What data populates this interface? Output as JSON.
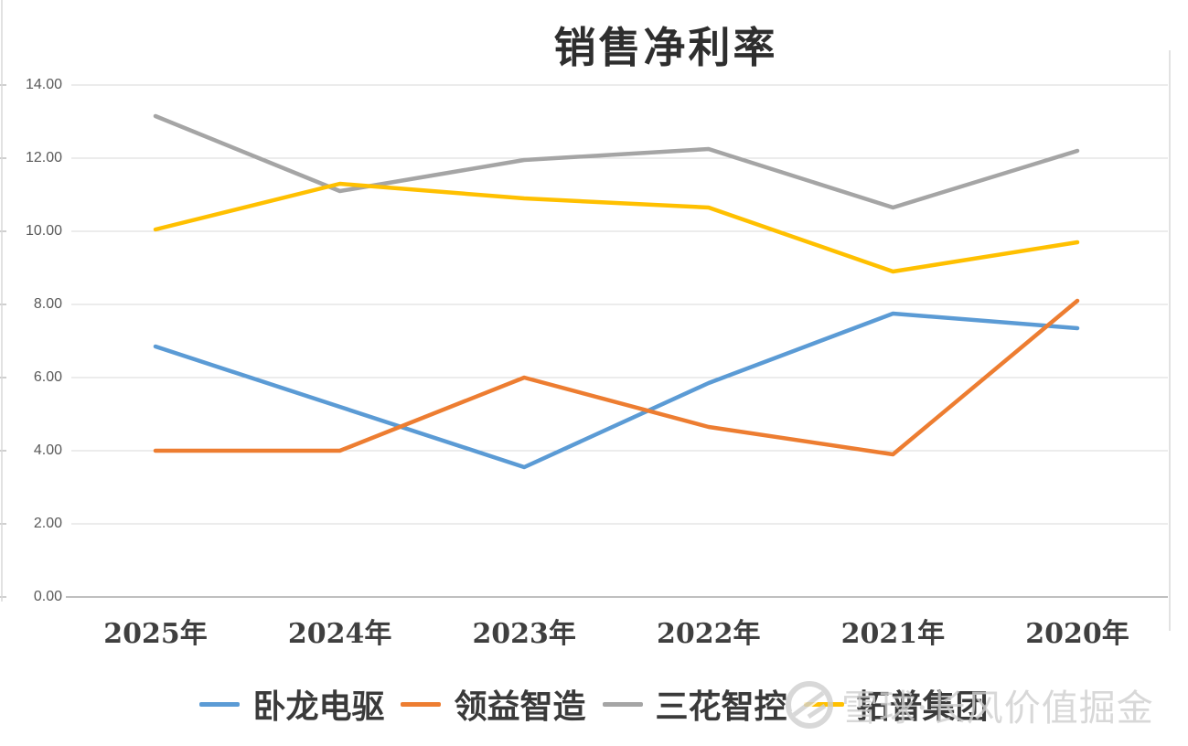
{
  "title": "销售净利率",
  "chart_data": {
    "type": "line",
    "title": "销售净利率",
    "categories": [
      "2025年",
      "2024年",
      "2023年",
      "2022年",
      "2021年",
      "2020年"
    ],
    "series": [
      {
        "name": "卧龙电驱",
        "color": "#5B9BD5",
        "values": [
          6.85,
          5.2,
          3.55,
          5.85,
          7.75,
          7.35
        ]
      },
      {
        "name": "领益智造",
        "color": "#ED7D31",
        "values": [
          4.0,
          4.0,
          6.0,
          4.65,
          3.9,
          8.1
        ]
      },
      {
        "name": "三花智控",
        "color": "#A5A5A5",
        "values": [
          13.15,
          11.1,
          11.95,
          12.25,
          10.65,
          12.2
        ]
      },
      {
        "name": "拓普集团",
        "color": "#FFC000",
        "values": [
          10.05,
          11.3,
          10.9,
          10.65,
          8.9,
          9.7
        ]
      }
    ],
    "ylim": [
      0,
      14
    ],
    "ytick_step": 2,
    "ytick_labels": [
      "0.00",
      "2.00",
      "4.00",
      "6.00",
      "8.00",
      "10.00",
      "12.00",
      "14.00"
    ],
    "grid": true,
    "legend_position": "bottom"
  },
  "watermark": {
    "logo_icon": "xueqiu-snowball-icon",
    "text": "雪球·长风价值掘金"
  },
  "colors": {
    "background": "#FFFFFF",
    "gridline": "#D9D9D9",
    "axis_line": "#BFBFBF",
    "title_text": "#2E2E2E",
    "ytick_text": "#595959",
    "xtick_text": "#3F3F3F",
    "legend_text": "#3A3A3A",
    "watermark": "#CFCFCF"
  }
}
